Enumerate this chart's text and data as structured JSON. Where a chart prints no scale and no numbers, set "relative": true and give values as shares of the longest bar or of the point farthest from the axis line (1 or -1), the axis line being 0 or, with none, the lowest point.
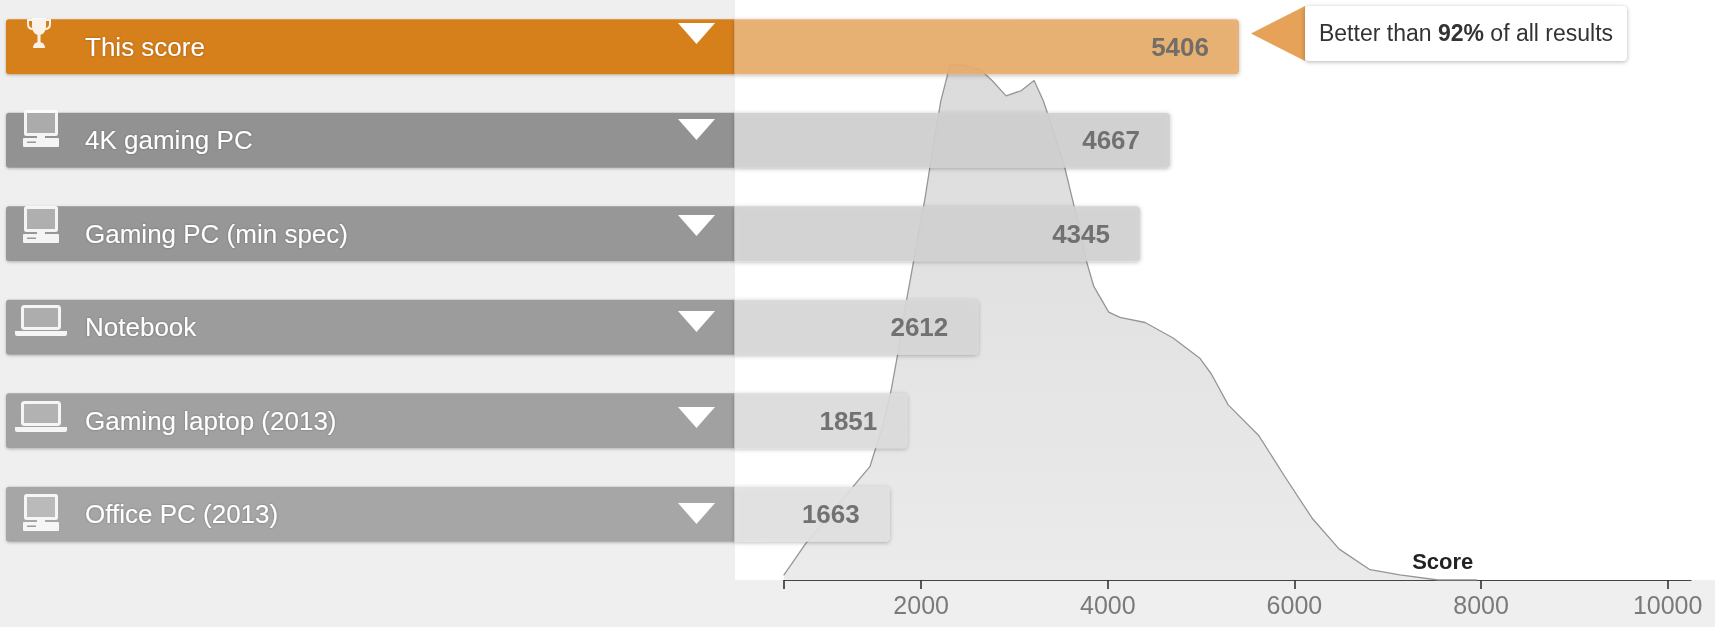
{
  "chart_data": [
    {
      "type": "bar",
      "orientation": "horizontal",
      "categories": [
        "This score",
        "4K gaming PC",
        "Gaming PC (min spec)",
        "Notebook",
        "Gaming laptop (2013)",
        "Office PC (2013)"
      ],
      "values": [
        5406,
        4667,
        4345,
        2612,
        1851,
        1663
      ],
      "colors": [
        "#e9ad6b",
        "#d0d0d0",
        "#d3d3d3",
        "#d8d8d8",
        "#dddddd",
        "#e2e2e2"
      ],
      "tick_labels": "y",
      "data_labels": true,
      "annotations": [
        "Better than 92% of all results"
      ]
    },
    {
      "type": "area",
      "x": [
        530,
        760,
        1310,
        1450,
        1590,
        1680,
        1760,
        1840,
        1940,
        2040,
        2110,
        2210,
        2310,
        2450,
        2640,
        2760,
        2910,
        3070,
        3210,
        3310,
        3420,
        3540,
        3620,
        3700,
        3770,
        3850,
        4010,
        4130,
        4400,
        4700,
        4990,
        5110,
        5290,
        5620,
        5900,
        6190,
        6480,
        6810,
        7130,
        7540,
        7950
      ],
      "values": [
        0.01,
        0.07,
        0.19,
        0.22,
        0.3,
        0.37,
        0.45,
        0.54,
        0.64,
        0.74,
        0.82,
        0.93,
        1.0,
        1.0,
        0.99,
        0.97,
        0.94,
        0.95,
        0.97,
        0.93,
        0.87,
        0.8,
        0.74,
        0.68,
        0.62,
        0.57,
        0.52,
        0.51,
        0.5,
        0.47,
        0.43,
        0.4,
        0.34,
        0.28,
        0.2,
        0.12,
        0.06,
        0.02,
        0.01,
        0.0,
        0.0
      ],
      "color": "#ebebeb",
      "relative": true,
      "xlim": [
        530,
        10250
      ],
      "xticks": [
        {
          "value": 530,
          "label": null
        },
        2000,
        4000,
        6000,
        8000,
        10000
      ],
      "xlabel": "Score"
    }
  ]
}
